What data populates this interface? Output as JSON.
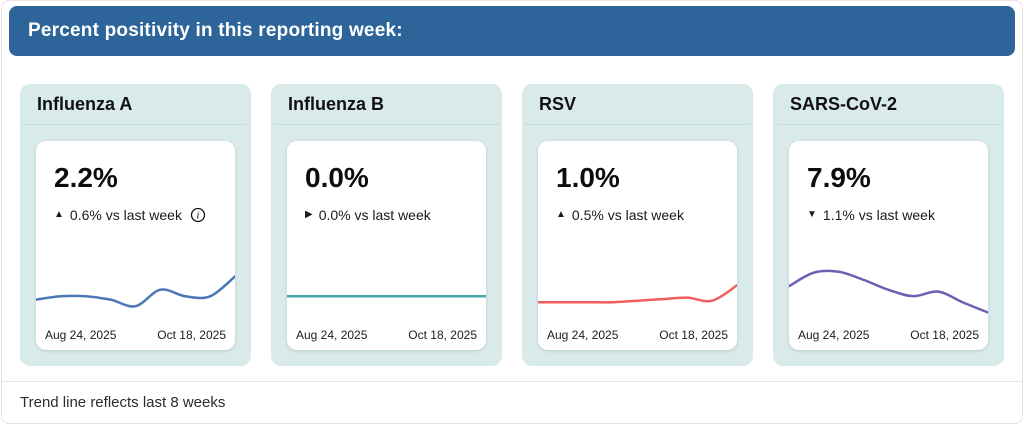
{
  "header": {
    "title": "Percent positivity in this reporting week:",
    "bg_color": "#2d6499"
  },
  "footer": {
    "note": "Trend line reflects last 8 weeks"
  },
  "colors": {
    "header_bg": "#2d6499",
    "card_bg": "#d9eaeb",
    "panel_bg": "#ffffff",
    "border": "#e3e3e3"
  },
  "cards": [
    {
      "title": "Influenza A",
      "value": "2.2%",
      "change": {
        "glyph": "▲",
        "direction": "up",
        "text": "0.6% vs last week"
      },
      "info_icon": "info-circle",
      "date_start": "Aug 24, 2025",
      "date_end": "Oct 18, 2025"
    },
    {
      "title": "Influenza B",
      "value": "0.0%",
      "change": {
        "glyph": "▶",
        "direction": "no-change",
        "text": "0.0% vs last week"
      },
      "date_start": "Aug 24, 2025",
      "date_end": "Oct 18, 2025"
    },
    {
      "title": "RSV",
      "value": "1.0%",
      "change": {
        "glyph": "▲",
        "direction": "up",
        "text": "0.5% vs last week"
      },
      "date_start": "Aug 24, 2025",
      "date_end": "Oct 18, 2025"
    },
    {
      "title": "SARS-CoV-2",
      "value": "7.9%",
      "change": {
        "glyph": "▼",
        "direction": "down",
        "text": "1.1% vs last week"
      },
      "date_start": "Aug 24, 2025",
      "date_end": "Oct 18, 2025"
    }
  ],
  "chart_data": [
    {
      "type": "line",
      "name": "Influenza A",
      "unit": "%",
      "title": "Influenza A percent positivity, last 8 weeks",
      "x_start": "Aug 24, 2025",
      "x_end": "Oct 18, 2025",
      "values": [
        1.5,
        1.6,
        1.6,
        1.5,
        1.3,
        1.8,
        1.6,
        1.6,
        2.2
      ],
      "current": 2.2,
      "change_vs_last_week": 0.6,
      "trend": "up",
      "ylim": [
        1.0,
        2.4
      ],
      "color": "#4a78b5",
      "grid": false,
      "legend": false
    },
    {
      "type": "line",
      "name": "Influenza B",
      "unit": "%",
      "title": "Influenza B percent positivity, last 8 weeks",
      "x_start": "Aug 24, 2025",
      "x_end": "Oct 18, 2025",
      "values": [
        0.0,
        0.0,
        0.0,
        0.0,
        0.0,
        0.0,
        0.0,
        0.0,
        0.0
      ],
      "current": 0.0,
      "change_vs_last_week": 0.0,
      "trend": "flat",
      "color": "#45a9a9",
      "grid": false,
      "legend": false
    },
    {
      "type": "line",
      "name": "RSV",
      "unit": "%",
      "title": "RSV percent positivity, last 8 weeks",
      "x_start": "Aug 24, 2025",
      "x_end": "Oct 18, 2025",
      "values": [
        0.45,
        0.45,
        0.45,
        0.45,
        0.5,
        0.55,
        0.6,
        0.5,
        1.0
      ],
      "current": 1.0,
      "change_vs_last_week": 0.5,
      "trend": "up",
      "ylim": [
        0,
        1.5
      ],
      "color": "#ef5f5f",
      "grid": false,
      "legend": false
    },
    {
      "type": "line",
      "name": "SARS-CoV-2",
      "unit": "%",
      "title": "SARS-CoV-2 percent positivity, last 8 weeks",
      "x_start": "Aug 24, 2025",
      "x_end": "Oct 18, 2025",
      "values": [
        10.8,
        12.3,
        12.4,
        11.5,
        10.4,
        9.7,
        10.2,
        9.0,
        7.9
      ],
      "current": 7.9,
      "change_vs_last_week": -1.1,
      "trend": "down",
      "ylim": [
        7.5,
        12.6
      ],
      "color": "#6f5fb3",
      "grid": false,
      "legend": false
    }
  ]
}
